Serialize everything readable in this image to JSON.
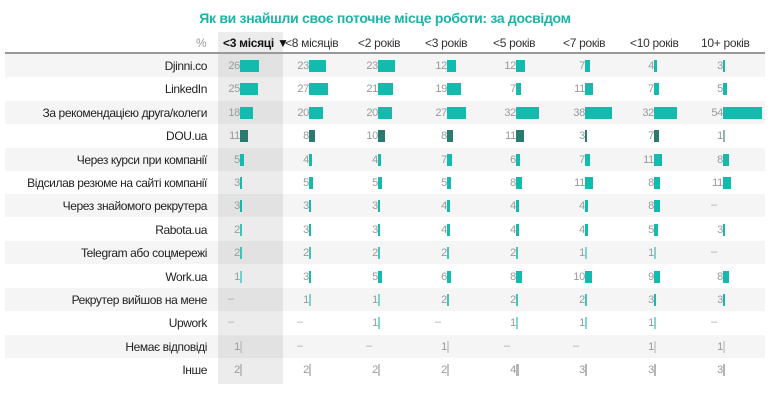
{
  "chart_data": {
    "type": "table",
    "title": "Як ви знайшли своє поточне місце роботи: за досвідом",
    "unit_label": "%",
    "columns": [
      "<3 місяці",
      "<8 місяців",
      "<2 років",
      "<3 років",
      "<5 років",
      "<7 років",
      "<10 років",
      "10+ років"
    ],
    "sorted_column": 0,
    "sort_indicator": "▼",
    "rows": [
      {
        "label": "Djinni.co",
        "values": [
          26,
          23,
          23,
          12,
          12,
          7,
          4,
          3
        ],
        "color": "#12bbad"
      },
      {
        "label": "LinkedIn",
        "values": [
          25,
          27,
          21,
          19,
          7,
          11,
          7,
          5
        ],
        "color": "#12bbad"
      },
      {
        "label": "За рекомендацією друга/колеги",
        "values": [
          18,
          20,
          20,
          27,
          32,
          38,
          32,
          54
        ],
        "color": "#12bbad"
      },
      {
        "label": "DOU.ua",
        "values": [
          11,
          8,
          10,
          8,
          11,
          3,
          7,
          1
        ],
        "color": "#2b7a70"
      },
      {
        "label": "Через курси при компанії",
        "values": [
          5,
          4,
          4,
          7,
          6,
          7,
          11,
          8
        ],
        "color": "#12bbad"
      },
      {
        "label": "Відсилав резюме на сайті компанії",
        "values": [
          3,
          5,
          5,
          5,
          8,
          11,
          8,
          11
        ],
        "color": "#12bbad"
      },
      {
        "label": "Через знайомого рекрутера",
        "values": [
          3,
          3,
          3,
          4,
          4,
          4,
          8,
          null
        ],
        "color": "#12bbad"
      },
      {
        "label": "Rabota.ua",
        "values": [
          2,
          3,
          3,
          4,
          4,
          4,
          5,
          3
        ],
        "color": "#12bbad"
      },
      {
        "label": "Telegram або соцмережі",
        "values": [
          2,
          2,
          2,
          2,
          2,
          1,
          1,
          null
        ],
        "color": "#12bbad"
      },
      {
        "label": "Work.ua",
        "values": [
          1,
          3,
          5,
          6,
          8,
          10,
          9,
          8
        ],
        "color": "#12bbad"
      },
      {
        "label": "Рекрутер вийшов на мене",
        "values": [
          null,
          1,
          1,
          2,
          2,
          2,
          3,
          3
        ],
        "color": "#12bbad"
      },
      {
        "label": "Upwork",
        "values": [
          null,
          null,
          1,
          null,
          1,
          1,
          1,
          null
        ],
        "color": "#12bbad"
      },
      {
        "label": "Немає відповіді",
        "values": [
          1,
          null,
          null,
          1,
          null,
          null,
          1,
          1
        ],
        "color": "#b5b5b5"
      },
      {
        "label": "Інше",
        "values": [
          2,
          2,
          2,
          2,
          4,
          3,
          3,
          3
        ],
        "color": "#b5b5b5"
      }
    ],
    "missing_symbol": "–",
    "xlim": [
      0,
      54
    ]
  }
}
